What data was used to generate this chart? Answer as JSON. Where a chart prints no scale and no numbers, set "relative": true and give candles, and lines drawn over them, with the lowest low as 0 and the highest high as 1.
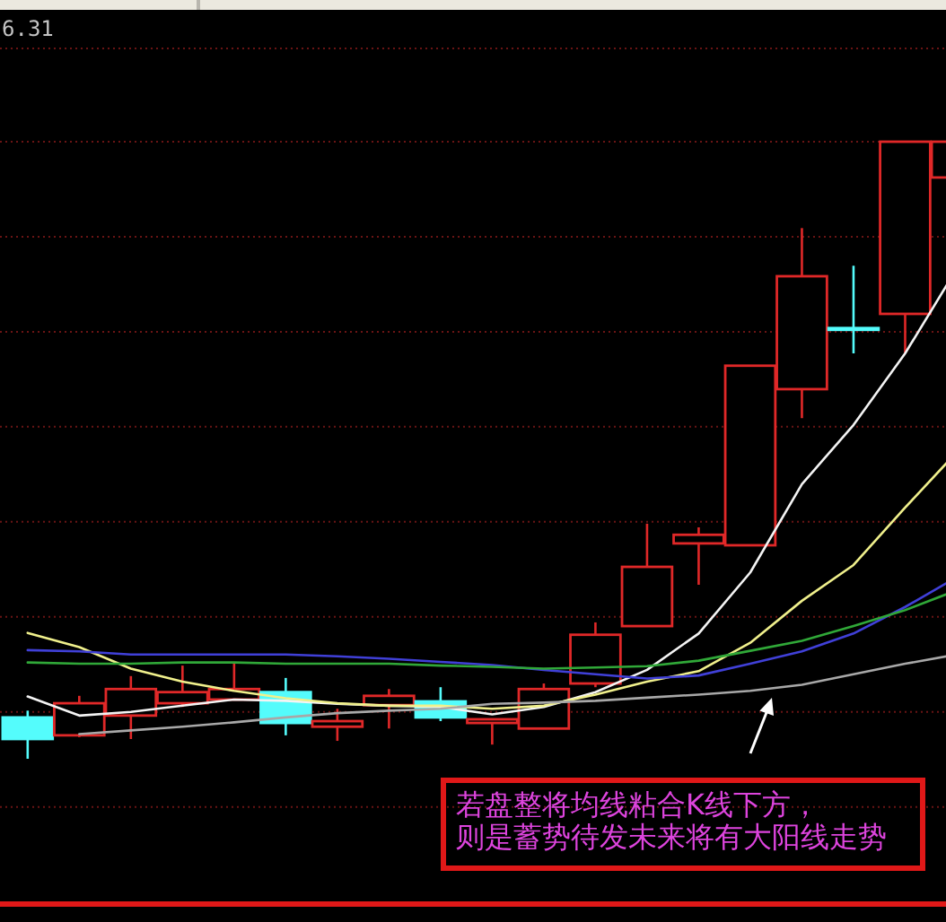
{
  "chart_data": {
    "type": "candlestick",
    "relative": true,
    "categories": [
      null,
      null,
      null,
      null,
      null,
      null,
      null,
      null,
      null,
      null,
      null,
      null,
      null,
      null,
      null,
      null,
      null,
      null,
      null
    ],
    "ohlc": [
      [
        0.067,
        0.078,
        0,
        0.032
      ],
      [
        0.038,
        0.102,
        0.035,
        0.09
      ],
      [
        0.07,
        0.134,
        0.032,
        0.113
      ],
      [
        0.09,
        0.151,
        0.084,
        0.108
      ],
      [
        0.096,
        0.157,
        0.096,
        0.113
      ],
      [
        0.108,
        0.131,
        0.038,
        0.058
      ],
      [
        0.052,
        0.081,
        0.029,
        0.061
      ],
      [
        0.087,
        0.113,
        0.049,
        0.102
      ],
      [
        0.093,
        0.116,
        0.061,
        0.067
      ],
      [
        0.058,
        0.064,
        0.023,
        0.064
      ],
      [
        0.049,
        0.122,
        0.049,
        0.113
      ],
      [
        0.122,
        0.221,
        0.116,
        0.201
      ],
      [
        0.215,
        0.381,
        0.215,
        0.311
      ],
      [
        0.349,
        0.375,
        0.282,
        0.363
      ],
      [
        0.346,
        0.637,
        0.346,
        0.637
      ],
      [
        0.599,
        0.86,
        0.552,
        0.782
      ],
      [
        0.698,
        0.799,
        0.657,
        0.698
      ],
      [
        0.721,
        1,
        0.657,
        1
      ],
      [
        0.942,
        1,
        0.942,
        1
      ]
    ],
    "colors": [
      "#54fcfc",
      "#e02828",
      "#e02828",
      "#e02828",
      "#e02828",
      "#54fcfc",
      "#e02828",
      "#e02828",
      "#54fcfc",
      "#e02828",
      "#e02828",
      "#e02828",
      "#e02828",
      "#e02828",
      "#e02828",
      "#e02828",
      "#54fcfc",
      "#e02828",
      "#e02828"
    ],
    "series": [
      {
        "type": "line",
        "color": "#f4f4f4",
        "values": [
          0.101,
          0.07,
          0.076,
          0.086,
          0.096,
          0.094,
          0.089,
          0.086,
          0.084,
          0.072,
          0.084,
          0.108,
          0.144,
          0.203,
          0.302,
          0.445,
          0.541,
          0.657,
          0.794
        ]
      },
      {
        "type": "line",
        "color": "#f0f08c",
        "values": [
          0.204,
          0.181,
          0.146,
          0.125,
          0.11,
          0.098,
          0.09,
          0.086,
          0.086,
          0.081,
          0.086,
          0.104,
          0.125,
          0.142,
          0.188,
          0.256,
          0.314,
          0.407,
          0.497
        ]
      },
      {
        "type": "line",
        "color": "#4040d8",
        "values": [
          0.176,
          0.174,
          0.169,
          0.169,
          0.169,
          0.169,
          0.166,
          0.162,
          0.157,
          0.152,
          0.144,
          0.137,
          0.13,
          0.135,
          0.154,
          0.174,
          0.203,
          0.246,
          0.294
        ]
      },
      {
        "type": "line",
        "color": "#30a838",
        "values": [
          0.156,
          0.154,
          0.154,
          0.156,
          0.156,
          0.154,
          0.154,
          0.154,
          0.151,
          0.149,
          0.146,
          0.148,
          0.15,
          0.159,
          0.175,
          0.191,
          0.215,
          0.241,
          0.273
        ]
      },
      {
        "type": "line",
        "color": "#a8a8a8",
        "values": [
          null,
          0.04,
          0.046,
          0.052,
          0.059,
          0.067,
          0.074,
          0.078,
          0.081,
          0.089,
          0.091,
          0.094,
          0.099,
          0.104,
          0.11,
          0.12,
          0.137,
          0.154,
          0.169
        ]
      }
    ],
    "ref_lines": [
      {
        "axis": "y",
        "value": 1.151,
        "color": "#6a1414",
        "line_style": "dotted"
      },
      {
        "axis": "y",
        "value": 1.0,
        "color": "#6a1414",
        "line_style": "dotted"
      },
      {
        "axis": "y",
        "value": 0.846,
        "color": "#6a1414",
        "line_style": "dotted"
      },
      {
        "axis": "y",
        "value": 0.692,
        "color": "#6a1414",
        "line_style": "dotted"
      },
      {
        "axis": "y",
        "value": 0.538,
        "color": "#6a1414",
        "line_style": "dotted"
      },
      {
        "axis": "y",
        "value": 0.384,
        "color": "#6a1414",
        "line_style": "dotted"
      },
      {
        "axis": "y",
        "value": 0.23,
        "color": "#6a1414",
        "line_style": "dotted"
      },
      {
        "axis": "y",
        "value": 0.076,
        "color": "#6a1414",
        "line_style": "dotted"
      },
      {
        "axis": "y",
        "value": -0.078,
        "color": "#6a1414",
        "line_style": "dotted"
      }
    ],
    "annotations": [
      "6.31",
      "若盘整将均线粘合K线下方，则是蓄势待发未来将有大阳线走势"
    ]
  }
}
